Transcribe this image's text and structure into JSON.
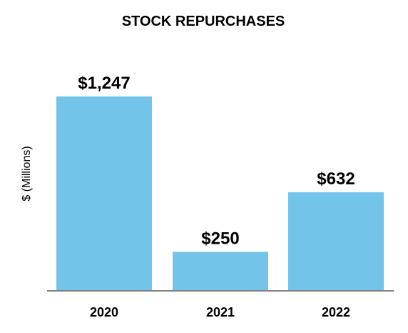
{
  "chart_data": {
    "type": "bar",
    "title": "STOCK REPURCHASES",
    "ylabel": "$ (Millions)",
    "xlabel": "",
    "categories": [
      "2020",
      "2021",
      "2022"
    ],
    "values": [
      1247,
      250,
      632
    ],
    "data_labels": [
      "$1,247",
      "$250",
      "$632"
    ],
    "ylim": [
      0,
      1400
    ],
    "grid": false,
    "legend": "none",
    "colors": {
      "bar": "#72c4e8",
      "axis": "#808080",
      "text": "#000000"
    }
  }
}
